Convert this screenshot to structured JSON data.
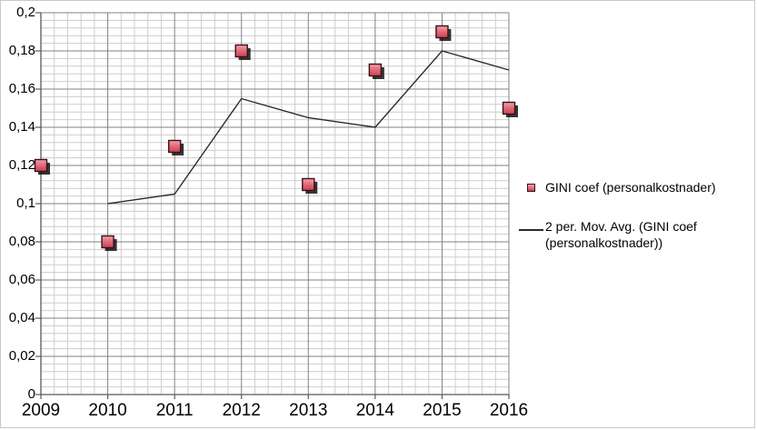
{
  "chart_data": {
    "type": "scatter",
    "title": "",
    "categories": [
      "2009",
      "2010",
      "2011",
      "2012",
      "2013",
      "2014",
      "2015",
      "2016"
    ],
    "series": [
      {
        "name": "GINI coef (personalkostnader)",
        "type": "scatter-square-marker",
        "values": [
          0.12,
          0.08,
          0.13,
          0.18,
          0.11,
          0.17,
          0.19,
          0.15
        ]
      },
      {
        "name": "2 per. Mov. Avg. (GINI coef (personalkostnader))",
        "type": "line",
        "values": [
          null,
          0.1,
          0.105,
          0.155,
          0.145,
          0.14,
          0.18,
          0.17
        ]
      }
    ],
    "xlabel": "",
    "ylabel": "",
    "ylim": [
      0,
      0.2
    ],
    "y_major_step": 0.02,
    "y_minor_step": 0.004,
    "x_minor_divisions_per_category": 5,
    "y_tick_labels": [
      "0",
      "0,02",
      "0,04",
      "0,06",
      "0,08",
      "0,1",
      "0,12",
      "0,14",
      "0,16",
      "0,18",
      "0,2"
    ],
    "grid": "major+minor",
    "legend_position": "right"
  },
  "colors": {
    "background": "#ffffff",
    "chart_border": "#c9c9c9",
    "minor_grid": "#cdcdcd",
    "major_grid": "#828282",
    "axis": "#595959",
    "ma_line": "#2b2b2b",
    "marker_fill_top": "#f2a0ab",
    "marker_fill_mid": "#e06a78",
    "marker_fill_bottom": "#cc4054",
    "marker_border": "#3c1016",
    "marker_shadow": "#121212",
    "text": "#000000"
  },
  "legend": {
    "items": [
      {
        "icon": "square-marker-icon",
        "label": "GINI coef (personalkostnader)"
      },
      {
        "icon": "line-sample-icon",
        "label": "2 per. Mov. Avg. (GINI coef (personalkostnader))"
      }
    ]
  }
}
